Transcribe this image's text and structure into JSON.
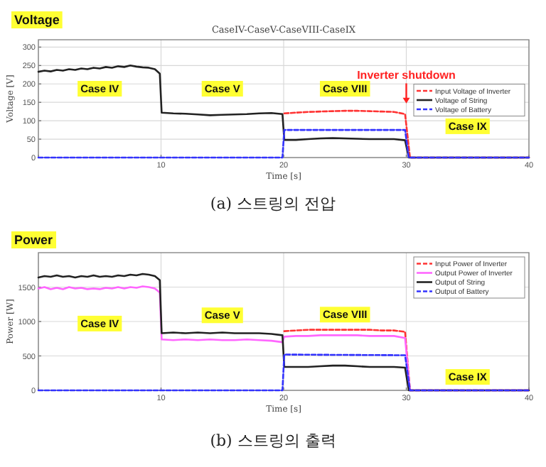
{
  "chart_data": [
    {
      "type": "line",
      "title": "CaseIV-CaseV-CaseVIII-CaseIX",
      "subtitle": "(a) 스트링의 전압",
      "xlabel": "Time [s]",
      "ylabel": "Voltage [V]",
      "xlim": [
        0,
        40
      ],
      "xticks": [
        {
          "value": 0,
          "label": null
        },
        10,
        20,
        30,
        40
      ],
      "ylim": [
        0,
        320
      ],
      "yticks": [
        0,
        50,
        100,
        150,
        200,
        250,
        300
      ],
      "grid": true,
      "legend": "right",
      "series": [
        {
          "name": "Input Voltage of Inverter",
          "color": "#ff3333",
          "line_style": "dashed",
          "x": [
            20.05,
            21,
            22,
            23,
            24,
            25,
            26,
            27,
            28,
            29,
            29.9,
            30.3,
            40
          ],
          "values": [
            120,
            122,
            124,
            125,
            126,
            127,
            127,
            126,
            125,
            124,
            118,
            0,
            0
          ]
        },
        {
          "name": "Voltage of String",
          "color": "#222222",
          "line_style": "solid",
          "x": [
            0,
            0.5,
            1,
            1.5,
            2,
            2.5,
            3,
            3.5,
            4,
            4.5,
            5,
            5.5,
            6,
            6.5,
            7,
            7.5,
            8,
            8.5,
            9,
            9.5,
            9.9,
            10.05,
            11,
            12,
            13,
            14,
            15,
            16,
            17,
            18,
            19,
            19.9,
            20.05,
            21,
            22,
            23,
            24,
            25,
            26,
            27,
            28,
            29,
            29.9,
            30.2,
            40
          ],
          "values": [
            233,
            236,
            234,
            238,
            236,
            240,
            238,
            242,
            240,
            244,
            242,
            246,
            244,
            248,
            246,
            250,
            247,
            245,
            244,
            240,
            228,
            122,
            120,
            119,
            117,
            115,
            116,
            117,
            118,
            120,
            121,
            118,
            48,
            48,
            50,
            52,
            53,
            52,
            51,
            50,
            50,
            50,
            47,
            0,
            0
          ]
        },
        {
          "name": "Voltage of Battery",
          "color": "#3333ff",
          "line_style": "dashed",
          "x": [
            0,
            19.9,
            20.05,
            29.9,
            30.2,
            40
          ],
          "values": [
            0,
            0,
            75,
            75,
            0,
            0
          ]
        }
      ],
      "ref_lines": [
        {
          "axis": "x",
          "value": 30,
          "label": "Inverter shutdown",
          "color": "#ff2222"
        }
      ],
      "annotations": [
        "Voltage",
        {
          "text": "Case IV",
          "x": 5,
          "y": 187
        },
        {
          "text": "Case V",
          "x": 15,
          "y": 187
        },
        {
          "text": "Case VIII",
          "x": 25,
          "y": 187
        },
        {
          "text": "Case IX",
          "x": 35,
          "y": 85
        }
      ]
    },
    {
      "type": "line",
      "subtitle": "(b) 스트링의 출력",
      "xlabel": "Time [s]",
      "ylabel": "Power [W]",
      "xlim": [
        0,
        40
      ],
      "xticks": [
        {
          "value": 0,
          "label": null
        },
        10,
        20,
        30,
        40
      ],
      "ylim": [
        0,
        2000
      ],
      "yticks": [
        0,
        500,
        1000,
        1500
      ],
      "grid": true,
      "legend": "top right",
      "series": [
        {
          "name": "Input Power of Inverter",
          "color": "#ff3333",
          "line_style": "dashed",
          "x": [
            20.05,
            21,
            22,
            23,
            24,
            25,
            26,
            27,
            28,
            29,
            29.9,
            30.3,
            40
          ],
          "values": [
            860,
            870,
            880,
            880,
            880,
            880,
            880,
            880,
            870,
            870,
            850,
            0,
            0
          ]
        },
        {
          "name": "Output Power of Inverter",
          "color": "#ff66ff",
          "line_style": "solid",
          "x": [
            0,
            0.5,
            1,
            1.5,
            2,
            2.5,
            3,
            3.5,
            4,
            4.5,
            5,
            5.5,
            6,
            6.5,
            7,
            7.5,
            8,
            8.5,
            9,
            9.5,
            9.9,
            10.05,
            11,
            12,
            13,
            14,
            15,
            16,
            17,
            18,
            19,
            19.9,
            20.05,
            21,
            22,
            23,
            24,
            25,
            26,
            27,
            28,
            29,
            29.9,
            30.3,
            40
          ],
          "values": [
            1480,
            1500,
            1470,
            1490,
            1470,
            1500,
            1480,
            1490,
            1470,
            1480,
            1470,
            1490,
            1480,
            1500,
            1480,
            1500,
            1490,
            1510,
            1500,
            1480,
            1420,
            740,
            730,
            740,
            730,
            740,
            730,
            730,
            740,
            730,
            720,
            700,
            780,
            790,
            790,
            800,
            800,
            800,
            800,
            790,
            790,
            790,
            760,
            0,
            0
          ]
        },
        {
          "name": "Output of String",
          "color": "#222222",
          "line_style": "solid",
          "x": [
            0,
            0.5,
            1,
            1.5,
            2,
            2.5,
            3,
            3.5,
            4,
            4.5,
            5,
            5.5,
            6,
            6.5,
            7,
            7.5,
            8,
            8.5,
            9,
            9.5,
            9.9,
            10.05,
            11,
            12,
            13,
            14,
            15,
            16,
            17,
            18,
            19,
            19.9,
            20.05,
            21,
            22,
            23,
            24,
            25,
            26,
            27,
            28,
            29,
            29.9,
            30.2,
            40
          ],
          "values": [
            1640,
            1660,
            1650,
            1670,
            1650,
            1660,
            1640,
            1660,
            1650,
            1670,
            1650,
            1660,
            1650,
            1670,
            1660,
            1680,
            1670,
            1690,
            1680,
            1660,
            1600,
            830,
            840,
            830,
            840,
            830,
            840,
            830,
            830,
            830,
            820,
            800,
            340,
            340,
            340,
            350,
            360,
            360,
            350,
            340,
            340,
            340,
            330,
            0,
            0
          ]
        },
        {
          "name": "Output of Battery",
          "color": "#3333ff",
          "line_style": "dashed",
          "x": [
            0,
            19.9,
            20.05,
            29.9,
            30.3,
            40
          ],
          "values": [
            0,
            0,
            520,
            510,
            0,
            0
          ]
        }
      ],
      "annotations": [
        "Power",
        {
          "text": "Case IV",
          "x": 5,
          "y": 970
        },
        {
          "text": "Case V",
          "x": 15,
          "y": 1090
        },
        {
          "text": "Case VIII",
          "x": 25,
          "y": 1100
        },
        {
          "text": "Case IX",
          "x": 35,
          "y": 195
        }
      ]
    }
  ]
}
